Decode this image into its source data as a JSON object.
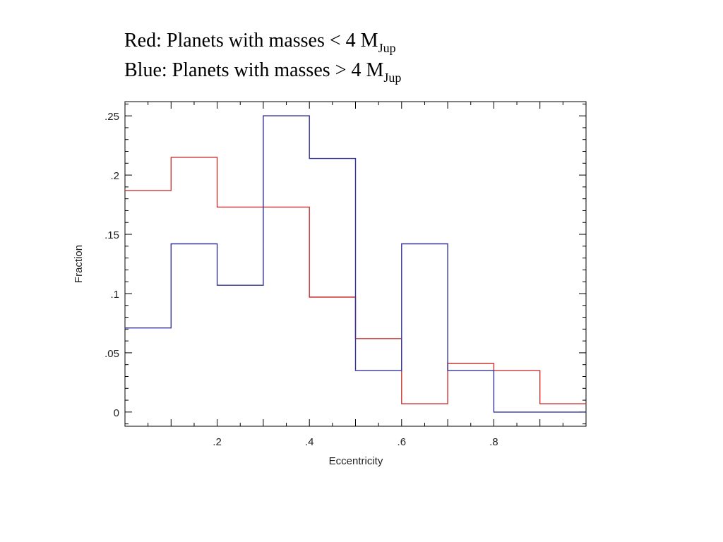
{
  "captions": [
    {
      "prefix": "Red: Planets with masses < 4 M",
      "sub": "Jup"
    },
    {
      "prefix": "Blue: Planets with masses > 4 M",
      "sub": "Jup"
    }
  ],
  "chart_data": {
    "type": "histogram",
    "xlabel": "Eccentricity",
    "ylabel": "Fraction",
    "xlim": [
      0,
      1.0
    ],
    "ylim": [
      -0.012,
      0.262
    ],
    "bin_edges": [
      0,
      0.1,
      0.2,
      0.3,
      0.4,
      0.5,
      0.6,
      0.7,
      0.8,
      0.9,
      1.0
    ],
    "x_ticks": [
      {
        "value": 0.2,
        "label": ".2"
      },
      {
        "value": 0.4,
        "label": ".4"
      },
      {
        "value": 0.6,
        "label": ".6"
      },
      {
        "value": 0.8,
        "label": ".8"
      }
    ],
    "y_ticks": [
      {
        "value": 0,
        "label": "0"
      },
      {
        "value": 0.05,
        "label": ".05"
      },
      {
        "value": 0.1,
        "label": ".1"
      },
      {
        "value": 0.15,
        "label": ".15"
      },
      {
        "value": 0.2,
        "label": ".2"
      },
      {
        "value": 0.25,
        "label": ".25"
      }
    ],
    "series": [
      {
        "color": "#cc3333",
        "values": [
          0.187,
          0.215,
          0.173,
          0.173,
          0.097,
          0.062,
          0.007,
          0.041,
          0.035,
          0.007
        ]
      },
      {
        "color": "#333399",
        "values": [
          0.071,
          0.142,
          0.107,
          0.25,
          0.214,
          0.035,
          0.142,
          0.035,
          0.0,
          0.0
        ]
      }
    ]
  }
}
